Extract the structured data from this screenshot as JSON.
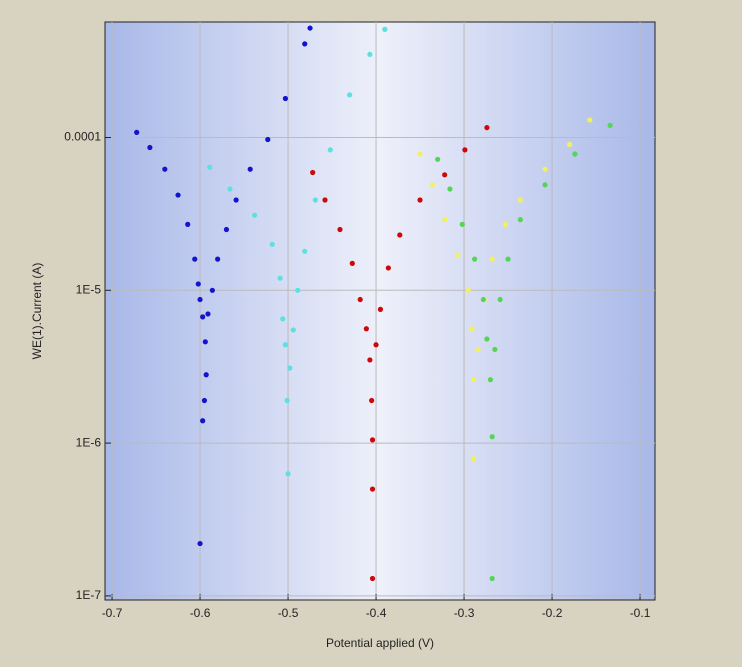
{
  "chart_data": {
    "type": "scatter",
    "x_label": "Potential applied (V)",
    "y_label": "WE(1).Current (A)",
    "log_y": true,
    "grid": true,
    "xlim": [
      -0.708,
      -0.083
    ],
    "ylim": [
      9.4e-08,
      0.00057
    ],
    "xticks": [
      -0.7,
      -0.6,
      -0.5,
      -0.4,
      -0.3,
      -0.2,
      -0.1
    ],
    "yticks": [
      {
        "value": 1e-07,
        "label": "1E-7"
      },
      {
        "value": 1e-06,
        "label": "1E-6"
      },
      {
        "value": 1e-05,
        "label": "1E-5"
      },
      {
        "value": 0.0001,
        "label": "0.0001"
      }
    ],
    "series": [
      {
        "color": "#1414cc",
        "x": [
          -0.672,
          -0.657,
          -0.64,
          -0.625,
          -0.614,
          -0.606,
          -0.602,
          -0.6,
          -0.597,
          -0.594,
          -0.593,
          -0.595,
          -0.597,
          -0.6,
          -0.591,
          -0.586,
          -0.58,
          -0.57,
          -0.559,
          -0.543,
          -0.523,
          -0.503,
          -0.481,
          -0.475
        ],
        "values": [
          0.000108,
          8.6e-05,
          6.2e-05,
          4.2e-05,
          2.7e-05,
          1.6e-05,
          1.1e-05,
          8.7e-06,
          6.7e-06,
          4.6e-06,
          2.8e-06,
          1.9e-06,
          1.4e-06,
          2.2e-07,
          7e-06,
          1e-05,
          1.6e-05,
          2.5e-05,
          3.9e-05,
          6.2e-05,
          9.7e-05,
          0.00018,
          0.00041,
          0.00052
        ]
      },
      {
        "color": "#5ee0e0",
        "x": [
          -0.589,
          -0.566,
          -0.538,
          -0.518,
          -0.509,
          -0.506,
          -0.503,
          -0.501,
          -0.5,
          -0.498,
          -0.494,
          -0.489,
          -0.481,
          -0.469,
          -0.452,
          -0.43,
          -0.407,
          -0.39
        ],
        "values": [
          6.4e-05,
          4.6e-05,
          3.1e-05,
          2e-05,
          1.2e-05,
          6.5e-06,
          4.4e-06,
          1.9e-06,
          6.3e-07,
          3.1e-06,
          5.5e-06,
          1e-05,
          1.8e-05,
          3.9e-05,
          8.3e-05,
          0.00019,
          0.00035,
          0.00051
        ]
      },
      {
        "color": "#cc0808",
        "x": [
          -0.472,
          -0.458,
          -0.441,
          -0.427,
          -0.418,
          -0.411,
          -0.407,
          -0.405,
          -0.404,
          -0.404,
          -0.404,
          -0.4,
          -0.395,
          -0.386,
          -0.373,
          -0.35,
          -0.322,
          -0.299,
          -0.274
        ],
        "values": [
          5.9e-05,
          3.9e-05,
          2.5e-05,
          1.5e-05,
          8.7e-06,
          5.6e-06,
          3.5e-06,
          1.9e-06,
          1.05e-06,
          5e-07,
          1.3e-07,
          4.4e-06,
          7.5e-06,
          1.4e-05,
          2.3e-05,
          3.9e-05,
          5.7e-05,
          8.3e-05,
          0.000116
        ]
      },
      {
        "color": "#f2f060",
        "x": [
          -0.35,
          -0.336,
          -0.322,
          -0.307,
          -0.295,
          -0.291,
          -0.289,
          -0.289,
          -0.284,
          -0.277,
          -0.268,
          -0.253,
          -0.236,
          -0.208,
          -0.18,
          -0.157
        ],
        "values": [
          7.8e-05,
          4.9e-05,
          2.9e-05,
          1.7e-05,
          1e-05,
          5.6e-06,
          2.6e-06,
          7.9e-07,
          4.1e-06,
          8.7e-06,
          1.6e-05,
          2.7e-05,
          3.9e-05,
          6.2e-05,
          9e-05,
          0.00013
        ]
      },
      {
        "color": "#55d455",
        "x": [
          -0.33,
          -0.316,
          -0.302,
          -0.288,
          -0.278,
          -0.274,
          -0.27,
          -0.268,
          -0.268,
          -0.265,
          -0.259,
          -0.25,
          -0.236,
          -0.208,
          -0.174,
          -0.134
        ],
        "values": [
          7.2e-05,
          4.6e-05,
          2.7e-05,
          1.6e-05,
          8.7e-06,
          4.8e-06,
          2.6e-06,
          1.1e-06,
          1.3e-07,
          4.1e-06,
          8.7e-06,
          1.6e-05,
          2.9e-05,
          4.9e-05,
          7.8e-05,
          0.00012
        ]
      }
    ]
  }
}
